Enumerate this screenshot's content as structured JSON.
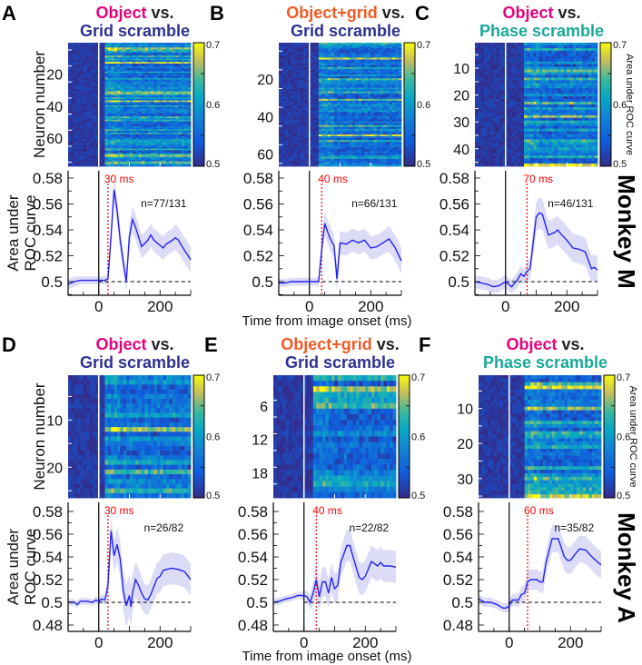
{
  "figure": {
    "xlabel": "Time from image onset (ms)",
    "monkeys": [
      "Monkey M",
      "Monkey A"
    ],
    "cbar_label": "Area under ROC curve",
    "heatmap_ylabel": "Neuron number",
    "line_ylabel": [
      "Area under",
      "ROC curve"
    ],
    "colors": {
      "object": "#e6007e",
      "object_grid": "#f15a24",
      "grid_scramble": "#2e3192",
      "phase_scramble": "#1aa899",
      "line": "#2424f0",
      "band": "#dcdcf7",
      "latency": "#ff0000"
    }
  },
  "chart_data": [
    {
      "panel": "A",
      "type": "line",
      "title_a": "Object",
      "title_vs": " vs.",
      "title_b": "Grid scramble",
      "color_a": "#e6007e",
      "color_b": "#2e3192",
      "latency": 30,
      "latency_label": "30 ms",
      "n_label": "n=77/131",
      "neurons": 77,
      "neuron_ticks": [
        "20",
        "40",
        "60"
      ],
      "cbar_ticks": [
        "0.7",
        "0.6",
        "0.5"
      ],
      "cbar_range": [
        0.5,
        0.7
      ],
      "xlim": [
        -100,
        300
      ],
      "xticks": [
        "0",
        "200"
      ],
      "ylim": [
        0.4895,
        0.5856
      ],
      "ytick_labels": [
        "0.58",
        "0.56",
        "0.54",
        "0.52",
        "0.5"
      ],
      "points": [
        [
          -100,
          0.498,
          0.004
        ],
        [
          -80,
          0.5,
          0.004
        ],
        [
          -60,
          0.501,
          0.003
        ],
        [
          -40,
          0.501,
          0.003
        ],
        [
          -20,
          0.501,
          0.003
        ],
        [
          0,
          0.501,
          0.003
        ],
        [
          20,
          0.501,
          0.003
        ],
        [
          30,
          0.502,
          0.004
        ],
        [
          40,
          0.535,
          0.008
        ],
        [
          50,
          0.571,
          0.01
        ],
        [
          60,
          0.555,
          0.01
        ],
        [
          70,
          0.532,
          0.009
        ],
        [
          80,
          0.515,
          0.008
        ],
        [
          90,
          0.5,
          0.008
        ],
        [
          100,
          0.535,
          0.009
        ],
        [
          110,
          0.548,
          0.01
        ],
        [
          120,
          0.542,
          0.01
        ],
        [
          140,
          0.527,
          0.009
        ],
        [
          160,
          0.532,
          0.009
        ],
        [
          170,
          0.536,
          0.009
        ],
        [
          180,
          0.532,
          0.009
        ],
        [
          200,
          0.528,
          0.009
        ],
        [
          210,
          0.526,
          0.009
        ],
        [
          220,
          0.529,
          0.009
        ],
        [
          240,
          0.532,
          0.009
        ],
        [
          250,
          0.534,
          0.01
        ],
        [
          260,
          0.532,
          0.01
        ],
        [
          280,
          0.524,
          0.01
        ],
        [
          300,
          0.517,
          0.01
        ]
      ]
    },
    {
      "panel": "B",
      "type": "line",
      "title_a": "Object+grid",
      "title_vs": " vs.",
      "title_b": "Grid scramble",
      "color_a": "#f15a24",
      "color_b": "#2e3192",
      "latency": 40,
      "latency_label": "40 ms",
      "n_label": "n=66/131",
      "neurons": 66,
      "neuron_ticks": [
        "20",
        "40",
        "60"
      ],
      "cbar_ticks": [
        "0.7",
        "0.6",
        "0.5"
      ],
      "cbar_range": [
        0.5,
        0.7
      ],
      "xlim": [
        -100,
        300
      ],
      "xticks": [
        "0",
        "200"
      ],
      "ylim": [
        0.4895,
        0.5856
      ],
      "ytick_labels": [
        "0.58",
        "0.56",
        "0.54",
        "0.52",
        "0.5"
      ],
      "points": [
        [
          -100,
          0.499,
          0.003
        ],
        [
          -80,
          0.499,
          0.003
        ],
        [
          -60,
          0.5,
          0.003
        ],
        [
          -40,
          0.5,
          0.003
        ],
        [
          -20,
          0.5,
          0.003
        ],
        [
          0,
          0.5,
          0.003
        ],
        [
          20,
          0.5,
          0.003
        ],
        [
          30,
          0.5,
          0.004
        ],
        [
          40,
          0.525,
          0.008
        ],
        [
          50,
          0.545,
          0.009
        ],
        [
          60,
          0.538,
          0.009
        ],
        [
          70,
          0.532,
          0.009
        ],
        [
          80,
          0.528,
          0.009
        ],
        [
          90,
          0.502,
          0.009
        ],
        [
          100,
          0.53,
          0.009
        ],
        [
          120,
          0.529,
          0.009
        ],
        [
          140,
          0.532,
          0.009
        ],
        [
          160,
          0.53,
          0.009
        ],
        [
          180,
          0.532,
          0.009
        ],
        [
          200,
          0.526,
          0.009
        ],
        [
          220,
          0.527,
          0.009
        ],
        [
          240,
          0.53,
          0.009
        ],
        [
          260,
          0.533,
          0.01
        ],
        [
          280,
          0.526,
          0.01
        ],
        [
          300,
          0.516,
          0.01
        ]
      ]
    },
    {
      "panel": "C",
      "type": "line",
      "title_a": "Object",
      "title_vs": " vs.",
      "title_b": "Phase scramble",
      "color_a": "#e6007e",
      "color_b": "#1aa899",
      "latency": 70,
      "latency_label": "70 ms",
      "n_label": "n=46/131",
      "neurons": 46,
      "neuron_ticks": [
        "10",
        "20",
        "30",
        "40"
      ],
      "cbar_ticks": [
        "0.7",
        "0.6",
        "0.5"
      ],
      "cbar_range": [
        0.5,
        0.7
      ],
      "xlim": [
        -100,
        300
      ],
      "xticks": [
        "0",
        "200"
      ],
      "ylim": [
        0.4895,
        0.5856
      ],
      "ytick_labels": [
        "0.58",
        "0.56",
        "0.54",
        "0.52",
        "0.5"
      ],
      "points": [
        [
          -100,
          0.5,
          0.005
        ],
        [
          -80,
          0.499,
          0.005
        ],
        [
          -60,
          0.498,
          0.005
        ],
        [
          -40,
          0.496,
          0.005
        ],
        [
          -20,
          0.497,
          0.005
        ],
        [
          0,
          0.5,
          0.005
        ],
        [
          20,
          0.496,
          0.005
        ],
        [
          40,
          0.502,
          0.006
        ],
        [
          50,
          0.506,
          0.006
        ],
        [
          60,
          0.504,
          0.006
        ],
        [
          70,
          0.508,
          0.007
        ],
        [
          80,
          0.51,
          0.008
        ],
        [
          100,
          0.55,
          0.011
        ],
        [
          110,
          0.553,
          0.012
        ],
        [
          120,
          0.552,
          0.012
        ],
        [
          140,
          0.536,
          0.011
        ],
        [
          160,
          0.538,
          0.011
        ],
        [
          170,
          0.54,
          0.011
        ],
        [
          180,
          0.537,
          0.011
        ],
        [
          200,
          0.532,
          0.011
        ],
        [
          220,
          0.526,
          0.011
        ],
        [
          240,
          0.525,
          0.011
        ],
        [
          260,
          0.523,
          0.011
        ],
        [
          280,
          0.51,
          0.01
        ],
        [
          290,
          0.511,
          0.01
        ],
        [
          300,
          0.509,
          0.01
        ]
      ]
    },
    {
      "panel": "D",
      "type": "line",
      "title_a": "Object",
      "title_vs": " vs.",
      "title_b": "Grid scramble",
      "color_a": "#e6007e",
      "color_b": "#2e3192",
      "latency": 30,
      "latency_label": "30 ms",
      "n_label": "n=26/82",
      "neurons": 26,
      "neuron_ticks": [
        "10",
        "20"
      ],
      "cbar_ticks": [
        "0.7",
        "0.6",
        "0.5"
      ],
      "cbar_range": [
        0.5,
        0.7
      ],
      "xlim": [
        -100,
        300
      ],
      "xticks": [
        "0",
        "200"
      ],
      "ylim": [
        0.4744,
        0.588
      ],
      "ytick_labels": [
        "0.58",
        "0.56",
        "0.54",
        "0.52",
        "0.5",
        "0.48"
      ],
      "points": [
        [
          -100,
          0.5,
          0.003
        ],
        [
          -80,
          0.5,
          0.003
        ],
        [
          -70,
          0.498,
          0.003
        ],
        [
          -60,
          0.501,
          0.003
        ],
        [
          -40,
          0.501,
          0.003
        ],
        [
          -20,
          0.5,
          0.003
        ],
        [
          -10,
          0.502,
          0.003
        ],
        [
          0,
          0.501,
          0.003
        ],
        [
          10,
          0.503,
          0.004
        ],
        [
          20,
          0.502,
          0.004
        ],
        [
          30,
          0.515,
          0.008
        ],
        [
          40,
          0.563,
          0.013
        ],
        [
          50,
          0.541,
          0.014
        ],
        [
          60,
          0.551,
          0.015
        ],
        [
          70,
          0.538,
          0.016
        ],
        [
          80,
          0.51,
          0.018
        ],
        [
          90,
          0.497,
          0.019
        ],
        [
          100,
          0.506,
          0.018
        ],
        [
          105,
          0.496,
          0.018
        ],
        [
          110,
          0.508,
          0.017
        ],
        [
          120,
          0.52,
          0.016
        ],
        [
          130,
          0.515,
          0.015
        ],
        [
          140,
          0.508,
          0.014
        ],
        [
          150,
          0.503,
          0.013
        ],
        [
          160,
          0.502,
          0.013
        ],
        [
          170,
          0.507,
          0.013
        ],
        [
          180,
          0.514,
          0.014
        ],
        [
          190,
          0.521,
          0.014
        ],
        [
          200,
          0.523,
          0.014
        ],
        [
          210,
          0.528,
          0.014
        ],
        [
          220,
          0.529,
          0.014
        ],
        [
          240,
          0.53,
          0.014
        ],
        [
          260,
          0.529,
          0.014
        ],
        [
          280,
          0.527,
          0.014
        ],
        [
          300,
          0.52,
          0.014
        ]
      ]
    },
    {
      "panel": "E",
      "type": "line",
      "title_a": "Object+grid",
      "title_vs": " vs.",
      "title_b": "Grid scramble",
      "color_a": "#f15a24",
      "color_b": "#2e3192",
      "latency": 40,
      "latency_label": "40 ms",
      "n_label": "n=22/82",
      "neurons": 22,
      "neuron_ticks": [
        "6",
        "12",
        "18"
      ],
      "cbar_ticks": [
        "0.7",
        "0.6",
        "0.5"
      ],
      "cbar_range": [
        0.5,
        0.7
      ],
      "xlim": [
        -100,
        300
      ],
      "xticks": [
        "0",
        "200"
      ],
      "ylim": [
        0.4744,
        0.588
      ],
      "ytick_labels": [
        "0.58",
        "0.56",
        "0.54",
        "0.52",
        "0.5",
        "0.48"
      ],
      "points": [
        [
          -100,
          0.5,
          0.003
        ],
        [
          -80,
          0.501,
          0.003
        ],
        [
          -60,
          0.503,
          0.003
        ],
        [
          -40,
          0.504,
          0.003
        ],
        [
          -20,
          0.506,
          0.003
        ],
        [
          0,
          0.506,
          0.004
        ],
        [
          10,
          0.505,
          0.005
        ],
        [
          20,
          0.5,
          0.007
        ],
        [
          30,
          0.508,
          0.01
        ],
        [
          40,
          0.52,
          0.014
        ],
        [
          50,
          0.505,
          0.013
        ],
        [
          60,
          0.518,
          0.013
        ],
        [
          70,
          0.518,
          0.013
        ],
        [
          80,
          0.508,
          0.013
        ],
        [
          90,
          0.522,
          0.013
        ],
        [
          100,
          0.512,
          0.013
        ],
        [
          110,
          0.515,
          0.013
        ],
        [
          120,
          0.535,
          0.013
        ],
        [
          140,
          0.55,
          0.014
        ],
        [
          150,
          0.55,
          0.014
        ],
        [
          160,
          0.54,
          0.014
        ],
        [
          180,
          0.522,
          0.014
        ],
        [
          190,
          0.52,
          0.014
        ],
        [
          200,
          0.523,
          0.014
        ],
        [
          220,
          0.536,
          0.014
        ],
        [
          240,
          0.532,
          0.014
        ],
        [
          250,
          0.535,
          0.014
        ],
        [
          260,
          0.532,
          0.014
        ],
        [
          280,
          0.532,
          0.014
        ],
        [
          300,
          0.531,
          0.014
        ]
      ]
    },
    {
      "panel": "F",
      "type": "line",
      "title_a": "Object",
      "title_vs": " vs.",
      "title_b": "Phase scramble",
      "color_a": "#e6007e",
      "color_b": "#1aa899",
      "latency": 60,
      "latency_label": "60 ms",
      "n_label": "n=35/82",
      "neurons": 35,
      "neuron_ticks": [
        "10",
        "20",
        "30"
      ],
      "cbar_ticks": [
        "0.7",
        "0.6",
        "0.5"
      ],
      "cbar_range": [
        0.5,
        0.7
      ],
      "xlim": [
        -100,
        300
      ],
      "xticks": [
        "0",
        "200"
      ],
      "ylim": [
        0.4744,
        0.588
      ],
      "ytick_labels": [
        "0.58",
        "0.56",
        "0.54",
        "0.52",
        "0.5",
        "0.48"
      ],
      "points": [
        [
          -100,
          0.503,
          0.004
        ],
        [
          -80,
          0.5,
          0.004
        ],
        [
          -60,
          0.5,
          0.004
        ],
        [
          -40,
          0.498,
          0.004
        ],
        [
          -20,
          0.495,
          0.004
        ],
        [
          -10,
          0.495,
          0.004
        ],
        [
          0,
          0.497,
          0.005
        ],
        [
          10,
          0.502,
          0.005
        ],
        [
          30,
          0.502,
          0.006
        ],
        [
          40,
          0.507,
          0.007
        ],
        [
          50,
          0.508,
          0.008
        ],
        [
          60,
          0.518,
          0.009
        ],
        [
          70,
          0.52,
          0.009
        ],
        [
          90,
          0.52,
          0.009
        ],
        [
          100,
          0.518,
          0.009
        ],
        [
          110,
          0.518,
          0.01
        ],
        [
          120,
          0.535,
          0.011
        ],
        [
          140,
          0.556,
          0.012
        ],
        [
          160,
          0.556,
          0.012
        ],
        [
          180,
          0.54,
          0.012
        ],
        [
          190,
          0.537,
          0.012
        ],
        [
          200,
          0.537,
          0.012
        ],
        [
          220,
          0.544,
          0.012
        ],
        [
          230,
          0.547,
          0.012
        ],
        [
          250,
          0.546,
          0.012
        ],
        [
          270,
          0.54,
          0.012
        ],
        [
          290,
          0.535,
          0.012
        ],
        [
          300,
          0.533,
          0.012
        ]
      ]
    }
  ]
}
